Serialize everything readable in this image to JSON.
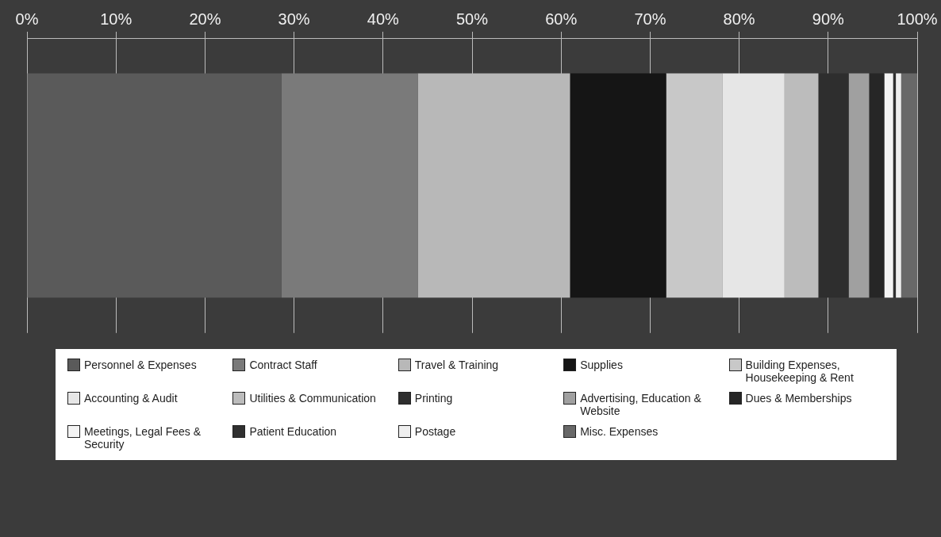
{
  "chart_data": {
    "type": "bar",
    "orientation": "horizontal",
    "stacked": true,
    "categories": [
      null
    ],
    "xlim": [
      0,
      100
    ],
    "xticks": [
      {
        "value": 0,
        "label": "0%"
      },
      {
        "value": 10,
        "label": "10%"
      },
      {
        "value": 20,
        "label": "20%"
      },
      {
        "value": 30,
        "label": "30%"
      },
      {
        "value": 40,
        "label": "40%"
      },
      {
        "value": 50,
        "label": "50%"
      },
      {
        "value": 60,
        "label": "60%"
      },
      {
        "value": 70,
        "label": "70%"
      },
      {
        "value": 80,
        "label": "80%"
      },
      {
        "value": 90,
        "label": "90%"
      },
      {
        "value": 100,
        "label": "100%"
      }
    ],
    "grid": "x",
    "legend": "bottom",
    "series": [
      {
        "name": "Personnel & Expenses",
        "color": "#5a5a5a",
        "values": [
          28.6
        ]
      },
      {
        "name": "Contract Staff",
        "color": "#7a7a7a",
        "values": [
          15.3
        ]
      },
      {
        "name": "Travel & Training",
        "color": "#b8b8b8",
        "values": [
          17.1
        ]
      },
      {
        "name": "Supplies",
        "color": "#151515",
        "values": [
          10.8
        ]
      },
      {
        "name": "Building Expenses, Housekeeping & Rent",
        "color": "#c8c8c8",
        "values": [
          6.3
        ]
      },
      {
        "name": "Accounting & Audit",
        "color": "#e6e6e6",
        "values": [
          7.0
        ]
      },
      {
        "name": "Utilities & Communication",
        "color": "#bcbcbc",
        "values": [
          3.8
        ]
      },
      {
        "name": "Printing",
        "color": "#2e2e2e",
        "values": [
          3.4
        ]
      },
      {
        "name": "Advertising, Education & Website",
        "color": "#a0a0a0",
        "values": [
          2.3
        ]
      },
      {
        "name": "Dues & Memberships",
        "color": "#262626",
        "values": [
          1.7
        ]
      },
      {
        "name": "Meetings, Legal Fees & Security",
        "color": "#f4f4f4",
        "values": [
          1.0
        ]
      },
      {
        "name": "Patient Education",
        "color": "#303030",
        "values": [
          0.3
        ]
      },
      {
        "name": "Postage",
        "color": "#efefef",
        "values": [
          0.6
        ]
      },
      {
        "name": "Misc. Expenses",
        "color": "#686868",
        "values": [
          1.8
        ]
      }
    ]
  }
}
